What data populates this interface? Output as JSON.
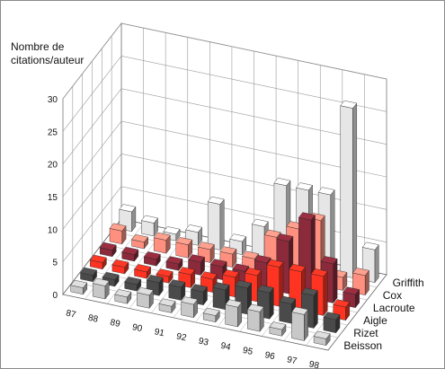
{
  "chart_data": {
    "type": "bar",
    "subtype": "3d-grouped",
    "ylabel": [
      "Nombre de",
      "citations/auteur"
    ],
    "ylim": [
      0,
      30
    ],
    "yticks": [
      0,
      5,
      10,
      15,
      20,
      25,
      30
    ],
    "grid": true,
    "categories": [
      "87",
      "88",
      "89",
      "90",
      "91",
      "92",
      "93",
      "94",
      "95",
      "96",
      "97",
      "98"
    ],
    "series": [
      {
        "name": "Beisson",
        "color": "#c8c8c8",
        "values": [
          1,
          2,
          1,
          2,
          1,
          2,
          1,
          3,
          3,
          1,
          4,
          1
        ]
      },
      {
        "name": "Rizet",
        "color": "#4a4a4a",
        "values": [
          1,
          1,
          1,
          2,
          2,
          2,
          3,
          4,
          4,
          3,
          5,
          2
        ]
      },
      {
        "name": "Aigle",
        "color": "#ff3322",
        "values": [
          1,
          1,
          1,
          1,
          2,
          2,
          3,
          4,
          6,
          6,
          6,
          2
        ]
      },
      {
        "name": "Lacroute",
        "color": "#8a2a3a",
        "values": [
          1,
          1,
          1,
          1,
          2,
          2,
          2,
          4,
          8,
          12,
          6,
          2
        ]
      },
      {
        "name": "Cox",
        "color": "#ff9080",
        "values": [
          2,
          1,
          2,
          2,
          2,
          2,
          2,
          6,
          8,
          10,
          2,
          3
        ]
      },
      {
        "name": "Griffith",
        "color": "#e6e6e6",
        "values": [
          3,
          2,
          1,
          2,
          7,
          2,
          5,
          12,
          12,
          12,
          26,
          5
        ]
      }
    ]
  }
}
